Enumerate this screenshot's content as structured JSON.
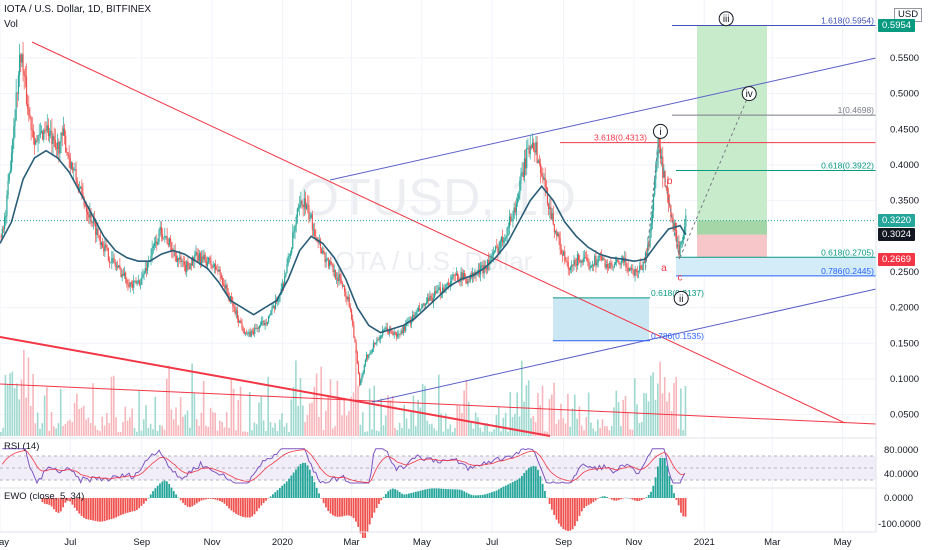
{
  "header": {
    "title": "IOTA / U.S. Dollar, 1D, BITFINEX",
    "vol_label": "Vol",
    "watermark_main": "IOTUSD, 1D",
    "watermark_sub": "IOTA / U.S. Dollar"
  },
  "price_axis": {
    "unit": "USD",
    "ticks": [
      {
        "v": 0.55,
        "label": "0.5500"
      },
      {
        "v": 0.5,
        "label": "0.5000"
      },
      {
        "v": 0.45,
        "label": "0.4500"
      },
      {
        "v": 0.4,
        "label": "0.4000"
      },
      {
        "v": 0.35,
        "label": "0.3500"
      },
      {
        "v": 0.25,
        "label": "0.2500"
      },
      {
        "v": 0.2,
        "label": "0.2000"
      },
      {
        "v": 0.15,
        "label": "0.1500"
      },
      {
        "v": 0.1,
        "label": "0.1000"
      },
      {
        "v": 0.05,
        "label": "0.0500"
      }
    ],
    "tags": [
      {
        "v": 0.5954,
        "label": "0.5954",
        "color": "#089981"
      },
      {
        "v": 0.322,
        "label": "0.3220",
        "color": "#26a69a"
      },
      {
        "v": 0.3024,
        "label": "0.3024",
        "color": "#131722"
      },
      {
        "v": 0.2669,
        "label": "0.2669",
        "color": "#f23645"
      }
    ]
  },
  "time_axis": {
    "labels": [
      {
        "day": 0,
        "label": "May"
      },
      {
        "day": 61,
        "label": "Jul"
      },
      {
        "day": 123,
        "label": "Sep"
      },
      {
        "day": 184,
        "label": "Nov"
      },
      {
        "day": 245,
        "label": "2020"
      },
      {
        "day": 305,
        "label": "Mar"
      },
      {
        "day": 366,
        "label": "May"
      },
      {
        "day": 427,
        "label": "Jul"
      },
      {
        "day": 489,
        "label": "Sep"
      },
      {
        "day": 550,
        "label": "Nov"
      },
      {
        "day": 611,
        "label": "2021"
      },
      {
        "day": 670,
        "label": "Mar"
      },
      {
        "day": 731,
        "label": "May"
      }
    ]
  },
  "fib_levels": [
    {
      "v": 0.5954,
      "label": "1.618(0.5954)",
      "color": "#3f51b5"
    },
    {
      "v": 0.4698,
      "label": "1(0.4698)",
      "color": "#787b86"
    },
    {
      "v": 0.4313,
      "label": "3.618(0.4313)",
      "color": "#f23645"
    },
    {
      "v": 0.3922,
      "label": "0.618(0.3922)",
      "color": "#089981"
    },
    {
      "v": 0.2705,
      "label": "0.618(0.2705)",
      "color": "#089981"
    },
    {
      "v": 0.2445,
      "label": "0.786(0.2445)",
      "color": "#2962ff"
    },
    {
      "v": 0.2137,
      "label": "0.618(0.2137)",
      "color": "#089981"
    },
    {
      "v": 0.1535,
      "label": "0.786(0.1535)",
      "color": "#2962ff"
    }
  ],
  "wave_labels": [
    {
      "text": "iii",
      "circled": true,
      "day": 630,
      "v": 0.605,
      "color": "#131722"
    },
    {
      "text": "iv",
      "circled": true,
      "day": 650,
      "v": 0.5,
      "color": "#131722"
    },
    {
      "text": "i",
      "circled": true,
      "day": 573,
      "v": 0.447,
      "color": "#131722"
    },
    {
      "text": "ii",
      "circled": true,
      "day": 591,
      "v": 0.213,
      "color": "#131722"
    },
    {
      "text": "b",
      "circled": false,
      "day": 581,
      "v": 0.378,
      "color": "#f23645"
    },
    {
      "text": "a",
      "circled": false,
      "day": 576,
      "v": 0.256,
      "color": "#f23645"
    },
    {
      "text": "c",
      "circled": false,
      "day": 590,
      "v": 0.243,
      "color": "#f23645"
    }
  ],
  "rsi": {
    "label": "RSI (14)",
    "ticks": [
      {
        "v": 80,
        "label": "80.0000"
      },
      {
        "v": 40,
        "label": "40.0000"
      }
    ]
  },
  "ewo": {
    "label": "EWO (close, 5, 34)",
    "ticks": [
      {
        "v": 0,
        "label": "0.0000"
      },
      {
        "v": -100,
        "label": "-100.0000"
      }
    ]
  },
  "chart_data": {
    "type": "line",
    "title": "IOTA / U.S. Dollar, 1D, BITFINEX",
    "x_unit": "days since start of May 2019",
    "price_series": [
      [
        0,
        0.3
      ],
      [
        5,
        0.33
      ],
      [
        12,
        0.46
      ],
      [
        18,
        0.56
      ],
      [
        25,
        0.47
      ],
      [
        32,
        0.43
      ],
      [
        40,
        0.455
      ],
      [
        48,
        0.42
      ],
      [
        55,
        0.44
      ],
      [
        62,
        0.4
      ],
      [
        70,
        0.36
      ],
      [
        78,
        0.33
      ],
      [
        86,
        0.3
      ],
      [
        95,
        0.27
      ],
      [
        105,
        0.25
      ],
      [
        115,
        0.23
      ],
      [
        123,
        0.24
      ],
      [
        130,
        0.27
      ],
      [
        140,
        0.31
      ],
      [
        150,
        0.28
      ],
      [
        160,
        0.255
      ],
      [
        170,
        0.27
      ],
      [
        180,
        0.265
      ],
      [
        190,
        0.25
      ],
      [
        200,
        0.21
      ],
      [
        208,
        0.18
      ],
      [
        215,
        0.16
      ],
      [
        222,
        0.17
      ],
      [
        230,
        0.18
      ],
      [
        238,
        0.2
      ],
      [
        245,
        0.23
      ],
      [
        252,
        0.28
      ],
      [
        258,
        0.33
      ],
      [
        263,
        0.35
      ],
      [
        268,
        0.33
      ],
      [
        275,
        0.3
      ],
      [
        282,
        0.27
      ],
      [
        290,
        0.25
      ],
      [
        298,
        0.23
      ],
      [
        304,
        0.2
      ],
      [
        308,
        0.15
      ],
      [
        312,
        0.09
      ],
      [
        318,
        0.13
      ],
      [
        325,
        0.15
      ],
      [
        335,
        0.17
      ],
      [
        345,
        0.16
      ],
      [
        355,
        0.18
      ],
      [
        366,
        0.2
      ],
      [
        376,
        0.215
      ],
      [
        386,
        0.23
      ],
      [
        396,
        0.245
      ],
      [
        406,
        0.24
      ],
      [
        416,
        0.25
      ],
      [
        427,
        0.27
      ],
      [
        437,
        0.3
      ],
      [
        447,
        0.34
      ],
      [
        455,
        0.4
      ],
      [
        462,
        0.44
      ],
      [
        468,
        0.4
      ],
      [
        474,
        0.36
      ],
      [
        480,
        0.32
      ],
      [
        487,
        0.28
      ],
      [
        494,
        0.25
      ],
      [
        502,
        0.27
      ],
      [
        510,
        0.26
      ],
      [
        520,
        0.27
      ],
      [
        530,
        0.255
      ],
      [
        540,
        0.265
      ],
      [
        550,
        0.25
      ],
      [
        558,
        0.26
      ],
      [
        563,
        0.29
      ],
      [
        567,
        0.36
      ],
      [
        571,
        0.43
      ],
      [
        575,
        0.39
      ],
      [
        579,
        0.35
      ],
      [
        583,
        0.32
      ],
      [
        587,
        0.3
      ],
      [
        589,
        0.27
      ],
      [
        592,
        0.3
      ],
      [
        595,
        0.322
      ]
    ],
    "ma_series": [
      [
        0,
        0.29
      ],
      [
        10,
        0.32
      ],
      [
        20,
        0.38
      ],
      [
        30,
        0.41
      ],
      [
        40,
        0.42
      ],
      [
        50,
        0.41
      ],
      [
        60,
        0.39
      ],
      [
        70,
        0.36
      ],
      [
        80,
        0.33
      ],
      [
        90,
        0.3
      ],
      [
        100,
        0.28
      ],
      [
        110,
        0.27
      ],
      [
        120,
        0.265
      ],
      [
        130,
        0.265
      ],
      [
        140,
        0.275
      ],
      [
        150,
        0.28
      ],
      [
        160,
        0.275
      ],
      [
        170,
        0.265
      ],
      [
        180,
        0.255
      ],
      [
        190,
        0.235
      ],
      [
        200,
        0.21
      ],
      [
        210,
        0.2
      ],
      [
        220,
        0.19
      ],
      [
        230,
        0.2
      ],
      [
        240,
        0.21
      ],
      [
        250,
        0.24
      ],
      [
        260,
        0.28
      ],
      [
        270,
        0.3
      ],
      [
        280,
        0.29
      ],
      [
        290,
        0.27
      ],
      [
        300,
        0.24
      ],
      [
        310,
        0.2
      ],
      [
        320,
        0.175
      ],
      [
        330,
        0.165
      ],
      [
        340,
        0.17
      ],
      [
        350,
        0.175
      ],
      [
        360,
        0.185
      ],
      [
        370,
        0.2
      ],
      [
        380,
        0.215
      ],
      [
        390,
        0.23
      ],
      [
        400,
        0.24
      ],
      [
        410,
        0.245
      ],
      [
        420,
        0.255
      ],
      [
        430,
        0.27
      ],
      [
        440,
        0.29
      ],
      [
        450,
        0.32
      ],
      [
        460,
        0.35
      ],
      [
        470,
        0.37
      ],
      [
        480,
        0.35
      ],
      [
        490,
        0.32
      ],
      [
        500,
        0.3
      ],
      [
        510,
        0.285
      ],
      [
        520,
        0.275
      ],
      [
        530,
        0.27
      ],
      [
        540,
        0.268
      ],
      [
        550,
        0.265
      ],
      [
        560,
        0.268
      ],
      [
        570,
        0.29
      ],
      [
        580,
        0.31
      ],
      [
        590,
        0.315
      ],
      [
        595,
        0.302
      ]
    ],
    "last_price": 0.322,
    "ylim": [
      0.02,
      0.62
    ],
    "xlim": [
      0,
      760
    ]
  }
}
